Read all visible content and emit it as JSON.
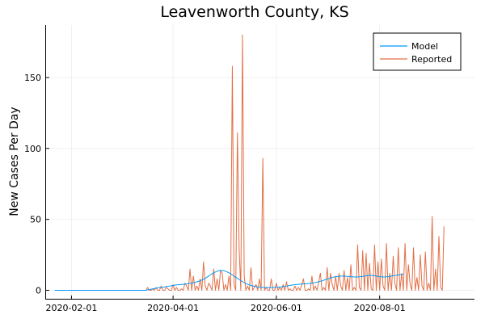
{
  "chart_data": {
    "type": "line",
    "title": "Leavenworth County, KS",
    "xlabel": "",
    "ylabel": "New Cases Per Day",
    "x_start": "2020-01-22",
    "xlim": [
      "2020-01-17",
      "2020-09-26"
    ],
    "ylim": [
      -6,
      187
    ],
    "x_ticks": [
      "2020-02-01",
      "2020-04-01",
      "2020-06-01",
      "2020-08-01"
    ],
    "y_ticks": [
      0,
      50,
      100,
      150
    ],
    "grid": true,
    "legend": "top-right",
    "series": [
      {
        "name": "Model",
        "color": "#009AFA",
        "values": [
          0,
          0,
          0,
          0,
          0,
          0,
          0,
          0,
          0,
          0,
          0,
          0,
          0,
          0,
          0,
          0,
          0,
          0,
          0,
          0,
          0,
          0,
          0,
          0,
          0,
          0,
          0,
          0,
          0,
          0,
          0,
          0,
          0,
          0,
          0,
          0,
          0,
          0,
          0,
          0,
          0,
          0,
          0,
          0,
          0,
          0,
          0,
          0,
          0,
          0,
          0,
          0,
          0,
          0,
          0,
          0.3,
          0.5,
          0.8,
          1,
          1.2,
          1.5,
          1.7,
          2,
          2,
          2.1,
          2.3,
          2.6,
          2.8,
          3,
          3.2,
          3.4,
          3.6,
          3.8,
          3.9,
          4,
          4.1,
          4.2,
          4.3,
          4.5,
          4.7,
          4.9,
          5.1,
          5.3,
          5.6,
          5.9,
          6.3,
          6.7,
          7.2,
          7.8,
          8.4,
          9.2,
          10,
          10.8,
          11.6,
          12.3,
          12.9,
          13.4,
          13.8,
          14,
          14,
          13.8,
          13.4,
          12.9,
          12.3,
          11.6,
          10.8,
          10,
          9.2,
          8.4,
          7.6,
          6.8,
          6.1,
          5.4,
          4.8,
          4.3,
          3.8,
          3.4,
          3.1,
          2.8,
          2.6,
          2.4,
          2.2,
          2.1,
          2,
          2,
          1.9,
          1.9,
          1.9,
          1.9,
          2,
          2,
          2.1,
          2.2,
          2.3,
          2.4,
          2.6,
          2.8,
          3,
          3.2,
          3.4,
          3.6,
          3.8,
          4,
          4.1,
          4.2,
          4.3,
          4.4,
          4.5,
          4.5,
          4.6,
          4.7,
          4.8,
          5,
          5.2,
          5.4,
          5.7,
          6,
          6.3,
          6.7,
          7.1,
          7.5,
          7.9,
          8.3,
          8.7,
          9,
          9.3,
          9.5,
          9.7,
          9.9,
          10,
          10,
          10,
          9.9,
          9.8,
          9.7,
          9.6,
          9.5,
          9.4,
          9.4,
          9.4,
          9.5,
          9.6,
          9.8,
          10,
          10.2,
          10.4,
          10.5,
          10.5,
          10.4,
          10.2,
          10,
          9.8,
          9.6,
          9.5,
          9.4,
          9.4,
          9.5,
          9.6,
          9.8,
          10,
          10.2,
          10.4,
          10.6,
          10.8,
          11,
          11.2,
          11.4
        ]
      },
      {
        "name": "Reported",
        "color": "#E26F46",
        "values": [
          0,
          0,
          0,
          0,
          0,
          0,
          0,
          0,
          0,
          0,
          0,
          0,
          0,
          0,
          0,
          0,
          0,
          0,
          0,
          0,
          0,
          0,
          0,
          0,
          0,
          0,
          0,
          0,
          0,
          0,
          0,
          0,
          0,
          0,
          0,
          0,
          0,
          0,
          0,
          0,
          0,
          0,
          0,
          0,
          0,
          0,
          0,
          0,
          0,
          0,
          0,
          0,
          0,
          0,
          0,
          2,
          0,
          0,
          1,
          0,
          2,
          0,
          0,
          3,
          0,
          0,
          2,
          1,
          0,
          0,
          4,
          0,
          2,
          0,
          0,
          1,
          0,
          5,
          3,
          0,
          15,
          0,
          10,
          0,
          3,
          0,
          8,
          0,
          20,
          3,
          0,
          5,
          3,
          0,
          15,
          0,
          8,
          0,
          14,
          12,
          0,
          4,
          0,
          10,
          0,
          158,
          4,
          0,
          111,
          30,
          0,
          180,
          10,
          0,
          3,
          0,
          16,
          0,
          2,
          4,
          0,
          8,
          0,
          93,
          0,
          2,
          0,
          0,
          8,
          0,
          0,
          5,
          0,
          2,
          0,
          4,
          0,
          6,
          0,
          1,
          0,
          0,
          3,
          0,
          2,
          0,
          4,
          8,
          0,
          0,
          1,
          0,
          10,
          0,
          3,
          0,
          6,
          12,
          0,
          2,
          0,
          16,
          0,
          12,
          4,
          0,
          10,
          0,
          12,
          3,
          0,
          14,
          0,
          9,
          0,
          18,
          0,
          2,
          0,
          32,
          2,
          0,
          28,
          0,
          26,
          0,
          19,
          1,
          0,
          32,
          0,
          20,
          0,
          22,
          3,
          0,
          33,
          0,
          12,
          0,
          24,
          5,
          0,
          30,
          0,
          12,
          0,
          33,
          0,
          18,
          4,
          0,
          30,
          0,
          9,
          0,
          25,
          3,
          0,
          27,
          0,
          5,
          0,
          52,
          0,
          15,
          0,
          38,
          2,
          0,
          45
        ]
      }
    ]
  }
}
